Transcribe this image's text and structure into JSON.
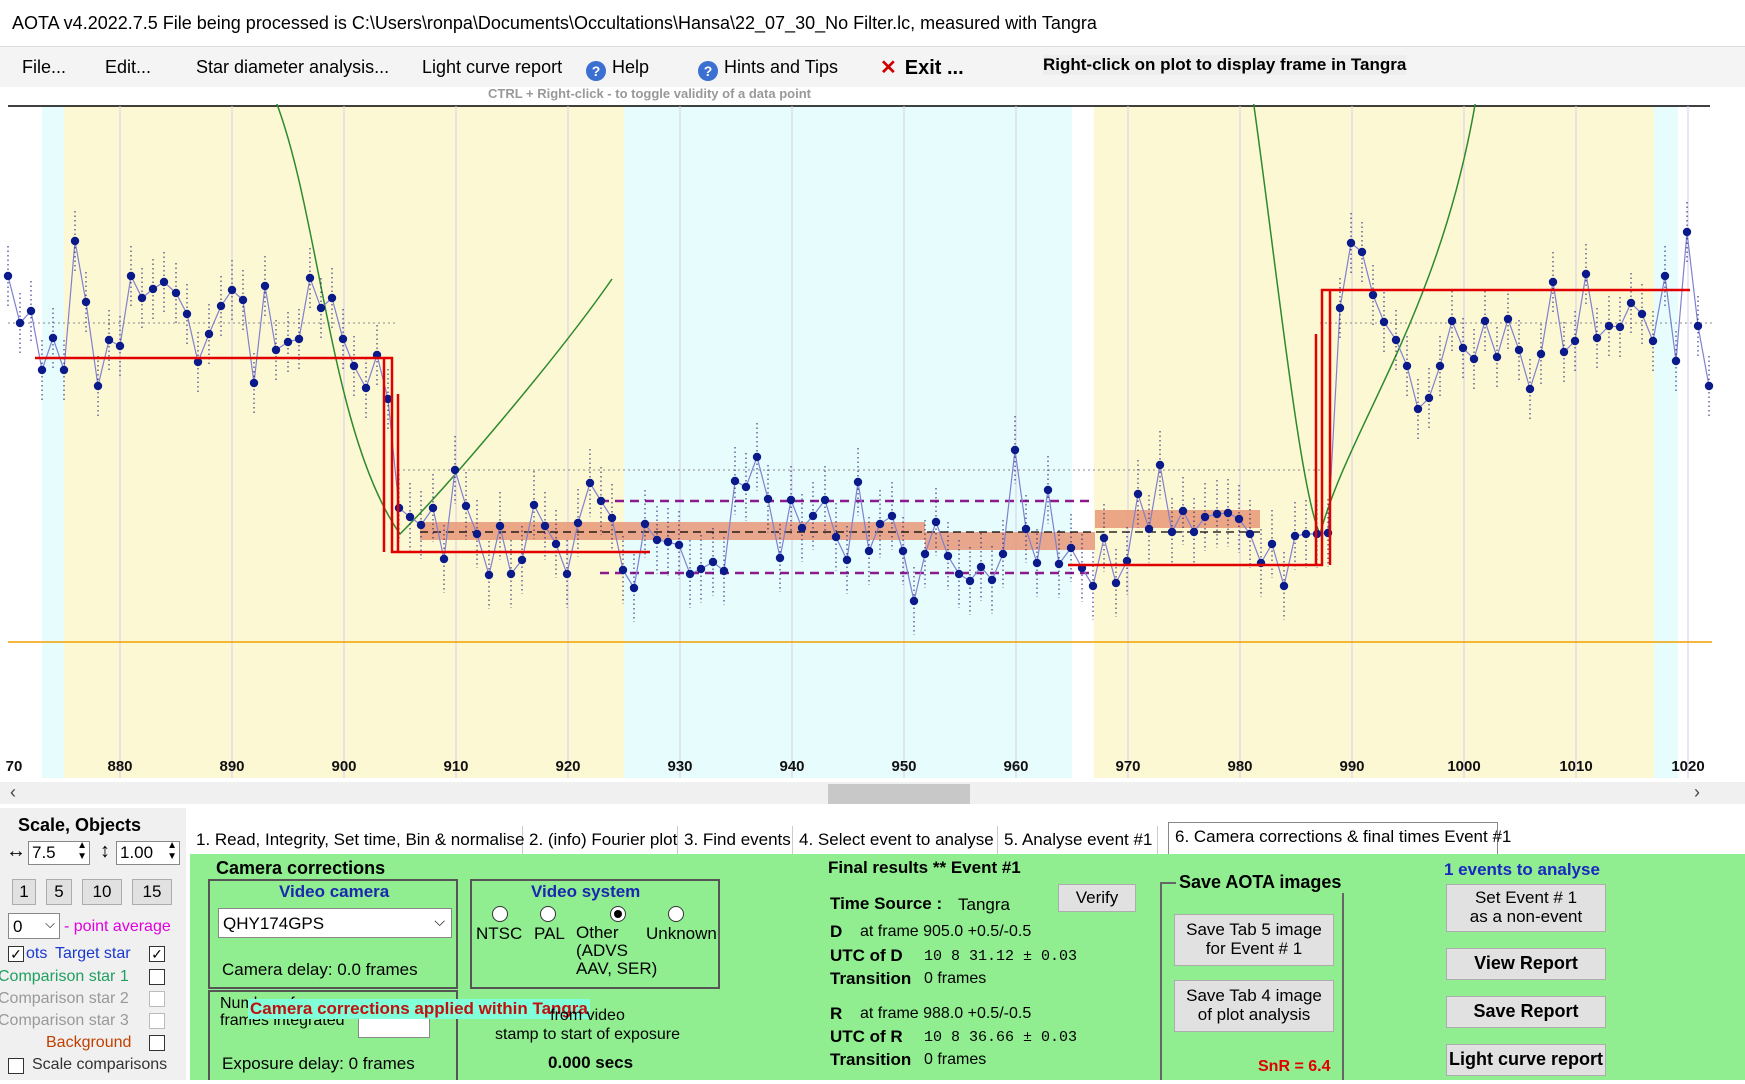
{
  "window": {
    "title": "AOTA v4.2022.7.5    File being processed is C:\\Users\\ronpa\\Documents\\Occultations\\Hansa\\22_07_30_No Filter.lc, measured with Tangra"
  },
  "menu": {
    "file": "File...",
    "edit": "Edit...",
    "star_diameter": "Star diameter analysis...",
    "light_curve_report": "Light curve report",
    "help": "Help",
    "hints": "Hints and Tips",
    "exit": "Exit ..."
  },
  "hints": {
    "right_click": "Right-click on plot to display frame in Tangra",
    "ctrl_right_click": "CTRL + Right-click  -  to toggle validity of a data point"
  },
  "plot": {
    "x_ticks": [
      "70",
      "880",
      "890",
      "900",
      "910",
      "920",
      "930",
      "940",
      "950",
      "960",
      "970",
      "980",
      "990",
      "1000",
      "1010",
      "1020"
    ]
  },
  "left_panel": {
    "scale_label": "Scale,  Objects",
    "h_scale": "7.5",
    "v_scale": "1.00",
    "zoom_buttons": [
      "1",
      "5",
      "10",
      "15"
    ],
    "point_average_value": "0",
    "point_average_label": "- point average",
    "plots_label": "ots",
    "target_star": "Target star",
    "comparison1": "Comparison star 1",
    "comparison2": "Comparison star 2",
    "comparison3": "Comparison star 3",
    "background": "Background",
    "scale_comparisons": "Scale comparisons"
  },
  "tabs": [
    "1.  Read, Integrity, Set time, Bin & normalise",
    "2. (info)  Fourier plot",
    "3. Find events",
    "4. Select event to analyse",
    "5. Analyse event #1",
    "6. Camera corrections & final times Event #1"
  ],
  "camera": {
    "group_title": "Camera corrections",
    "video_camera_title": "Video camera",
    "camera_value": "QHY174GPS",
    "camera_delay": "Camera delay: 0.0 frames",
    "video_system_title": "Video system",
    "systems": [
      "NTSC",
      "PAL",
      "Other\n(ADVS\nAAV, SER)",
      "Unknown"
    ],
    "frames_integrated_label": "Number of\nframes integrated",
    "overlay": "Camera corrections applied within Tangra",
    "time_offset_label": "from video\nstamp to start of exposure",
    "time_offset_value": "0.000 secs",
    "exposure_delay": "Exposure delay: 0 frames"
  },
  "final": {
    "title": "Final results  **  Event #1",
    "time_source_label": "Time Source :",
    "time_source": "Tangra",
    "verify": "Verify",
    "d_label": "D",
    "d_frame": "at frame 905.0  +0.5/-0.5",
    "utc_d_label": "UTC of D",
    "utc_d": "10  8 31.12  ± 0.03",
    "transition_label": "Transition",
    "transition_d": "0 frames",
    "r_label": "R",
    "r_frame": "at frame 988.0  +0.5/-0.5",
    "utc_r_label": "UTC of R",
    "utc_r": "10  8 36.66  ± 0.03",
    "transition_r": "0 frames"
  },
  "save": {
    "title": "Save AOTA images",
    "tab5": "Save Tab 5 image\nfor Event # 1",
    "tab4": "Save Tab 4 image\nof plot analysis",
    "snr": "SnR = 6.4"
  },
  "actions": {
    "events_to_analyse": "1  events to analyse",
    "set_non_event": "Set Event # 1\nas a non-event",
    "view_report": "View Report",
    "save_report": "Save Report",
    "light_curve_report": "Light curve report"
  }
}
